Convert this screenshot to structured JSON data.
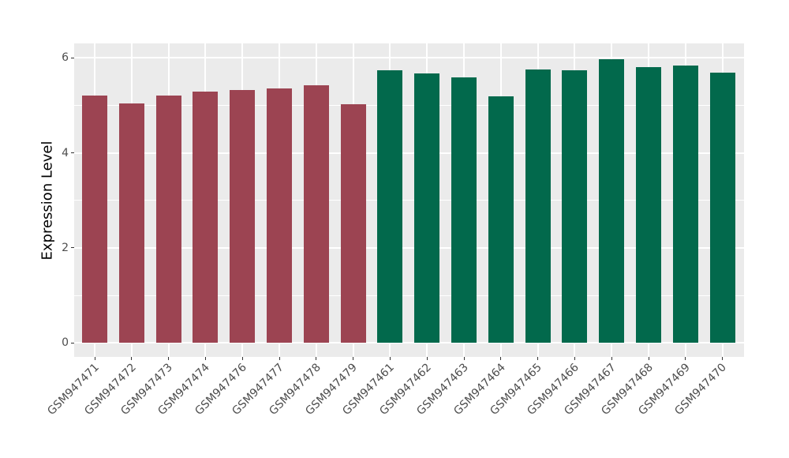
{
  "figure": {
    "background": "#FFFFFF",
    "panel_background": "#EBEBEB",
    "grid_color": "#FFFFFF",
    "tick_mark_color": "#333333",
    "tick_label_color": "#4D4D4D",
    "axis_title_color": "#000000"
  },
  "chart_data": {
    "type": "bar",
    "title": "",
    "xlabel": "",
    "ylabel": "Expression Level",
    "ylim": [
      0,
      6.3
    ],
    "yticks_major": [
      0,
      2,
      4,
      6
    ],
    "yticks_minor": [
      1,
      3,
      5
    ],
    "grid": true,
    "legend_position": "none",
    "categories": [
      "GSM947471",
      "GSM947472",
      "GSM947473",
      "GSM947474",
      "GSM947476",
      "GSM947477",
      "GSM947478",
      "GSM947479",
      "GSM947461",
      "GSM947462",
      "GSM947463",
      "GSM947464",
      "GSM947465",
      "GSM947466",
      "GSM947467",
      "GSM947468",
      "GSM947469",
      "GSM947470"
    ],
    "values": [
      5.2,
      5.04,
      5.21,
      5.29,
      5.32,
      5.36,
      5.42,
      5.03,
      5.74,
      5.67,
      5.59,
      5.19,
      5.75,
      5.73,
      5.97,
      5.81,
      5.84,
      5.69
    ],
    "groups": [
      {
        "name": "group-1-maroon",
        "color": "#9C4452",
        "start_index": 0,
        "count": 8
      },
      {
        "name": "group-2-green",
        "color": "#02694C",
        "start_index": 8,
        "count": 10
      }
    ]
  }
}
